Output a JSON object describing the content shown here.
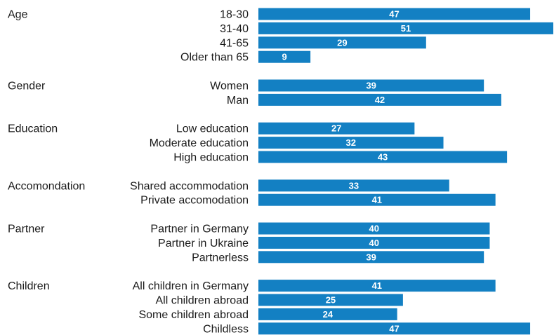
{
  "chart_data": {
    "type": "bar",
    "orientation": "horizontal",
    "bar_color": "#1380c3",
    "xlim": [
      0,
      51
    ],
    "grid": false,
    "legend": "none",
    "groups": [
      {
        "name": "Age",
        "categories": [
          "18-30",
          "31-40",
          "41-65",
          "Older than 65"
        ],
        "values": [
          47,
          51,
          29,
          9
        ]
      },
      {
        "name": "Gender",
        "categories": [
          "Women",
          "Man"
        ],
        "values": [
          39,
          42
        ]
      },
      {
        "name": "Education",
        "categories": [
          "Low education",
          "Moderate education",
          "High education"
        ],
        "values": [
          27,
          32,
          43
        ]
      },
      {
        "name": "Accomondation",
        "categories": [
          "Shared accommodation",
          "Private accomodation"
        ],
        "values": [
          33,
          41
        ]
      },
      {
        "name": "Partner",
        "categories": [
          "Partner in Germany",
          "Partner in Ukraine",
          "Partnerless"
        ],
        "values": [
          40,
          40,
          39
        ]
      },
      {
        "name": "Children",
        "categories": [
          "All children in Germany",
          "All children abroad",
          "Some children abroad",
          "Childless"
        ],
        "values": [
          41,
          25,
          24,
          47
        ]
      }
    ]
  }
}
